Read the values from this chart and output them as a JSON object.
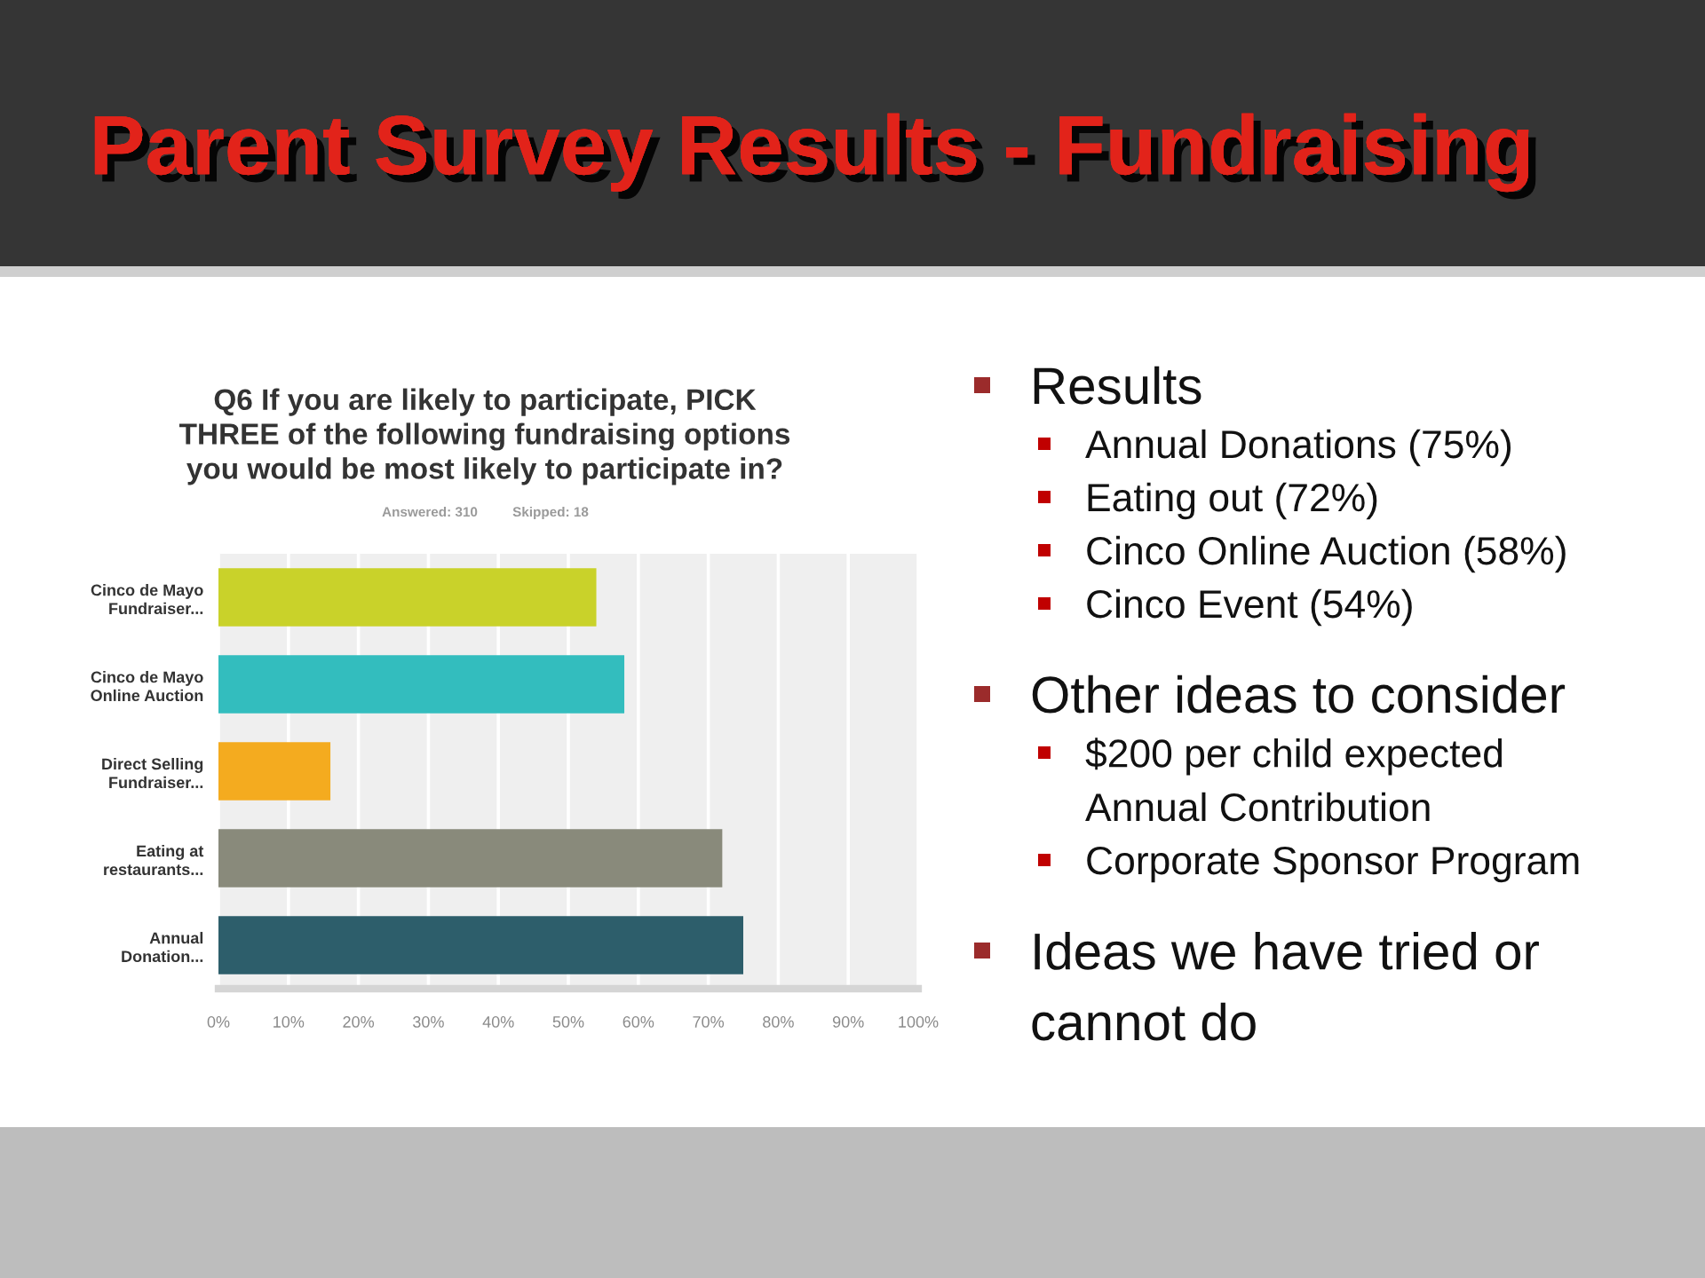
{
  "chart_data": {
    "type": "bar",
    "orientation": "horizontal",
    "title": "Parent Survey Results - Fundraising",
    "subtitle": "Q6 If you are likely to participate, PICK THREE of the following fundraising options you would be most likely to participate in?",
    "categories": [
      "Cinco de Mayo Fundraiser...",
      "Cinco de Mayo Online Auction",
      "Direct Selling Fundraiser...",
      "Eating at restaurants...",
      "Annual Donation..."
    ],
    "values": [
      54,
      58,
      16,
      72,
      75
    ],
    "colors": [
      "#c9d22a",
      "#33bdbe",
      "#f4ab1f",
      "#898a7b",
      "#2d5e6b"
    ],
    "xlim": [
      0,
      100
    ],
    "xticks": [
      {
        "value": 0,
        "label": "0%"
      },
      {
        "value": 10,
        "label": "10%"
      },
      {
        "value": 20,
        "label": "20%"
      },
      {
        "value": 30,
        "label": "30%"
      },
      {
        "value": 40,
        "label": "40%"
      },
      {
        "value": 50,
        "label": "50%"
      },
      {
        "value": 60,
        "label": "60%"
      },
      {
        "value": 70,
        "label": "70%"
      },
      {
        "value": 80,
        "label": "80%"
      },
      {
        "value": 90,
        "label": "90%"
      },
      {
        "value": 100,
        "label": "100%"
      }
    ],
    "grid": "x",
    "annotations": [
      "Answered: 310",
      "Skipped: 18",
      "Results",
      "Annual Donations (75%)",
      "Eating out (72%)",
      "Cinco Online Auction (58%)",
      "Cinco Event (54%)",
      "Other ideas to consider",
      "$200 per child expected Annual Contribution",
      "Corporate Sponsor Program",
      "Ideas we have tried or cannot do"
    ]
  }
}
